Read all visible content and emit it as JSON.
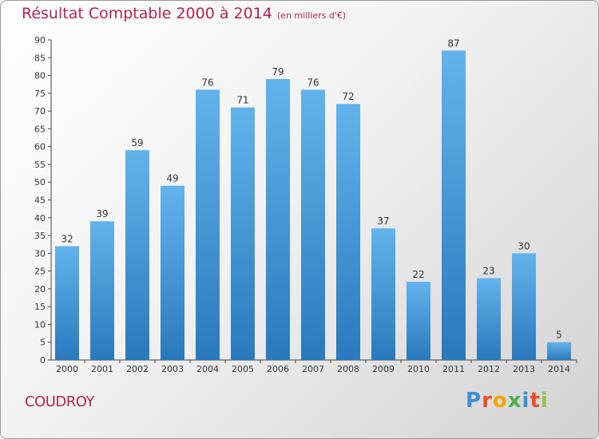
{
  "header": {
    "title": "Résultat Comptable 2000 à 2014",
    "unit": "(en milliers d'€)"
  },
  "footer": {
    "commune": "COUDROY",
    "logo_text": "Proxiti"
  },
  "colors": {
    "title": "#b2244f",
    "bar_top": "#62b3ec",
    "bar_bottom": "#2a79bd"
  },
  "chart_data": {
    "type": "bar",
    "title": "Résultat Comptable 2000 à 2014",
    "subtitle": "(en milliers d'€)",
    "categories": [
      "2000",
      "2001",
      "2002",
      "2003",
      "2004",
      "2005",
      "2006",
      "2007",
      "2008",
      "2009",
      "2010",
      "2011",
      "2012",
      "2013",
      "2014"
    ],
    "values": [
      32,
      39,
      59,
      49,
      76,
      71,
      79,
      76,
      72,
      37,
      22,
      87,
      23,
      30,
      5
    ],
    "ylim": [
      0,
      90
    ],
    "yticks": [
      0,
      5,
      10,
      15,
      20,
      25,
      30,
      35,
      40,
      45,
      50,
      55,
      60,
      65,
      70,
      75,
      80,
      85,
      90
    ],
    "grid": false,
    "data_labels": true
  }
}
